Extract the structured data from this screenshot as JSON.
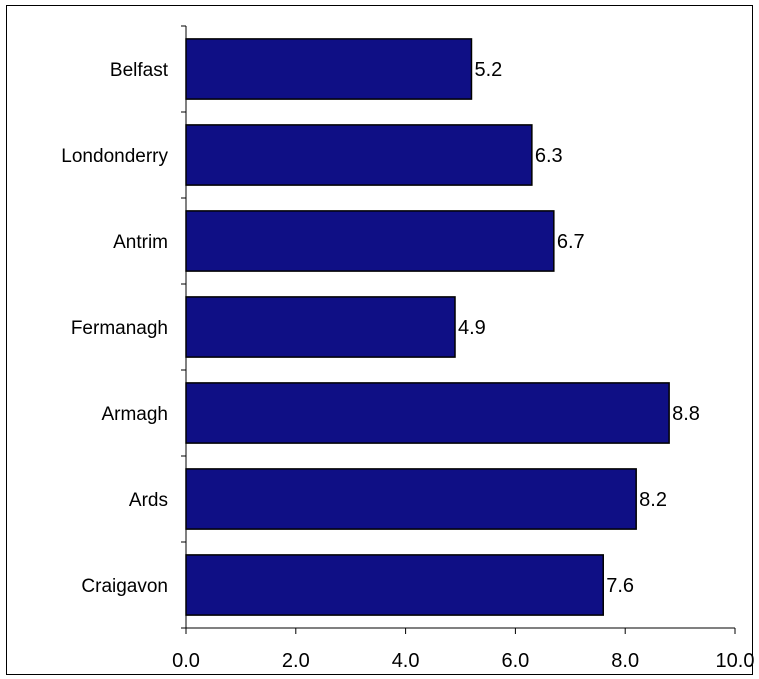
{
  "chart_data": {
    "type": "bar",
    "orientation": "horizontal",
    "categories": [
      "Belfast",
      "Londonderry",
      "Antrim",
      "Fermanagh",
      "Armagh",
      "Ards",
      "Craigavon"
    ],
    "values": [
      5.2,
      6.3,
      6.7,
      4.9,
      8.8,
      8.2,
      7.6
    ],
    "data_labels": [
      "5.2",
      "6.3",
      "6.7",
      "4.9",
      "8.8",
      "8.2",
      "7.6"
    ],
    "title": "",
    "xlabel": "",
    "ylabel": "",
    "xlim": [
      0,
      10
    ],
    "x_ticks": [
      "0.0",
      "2.0",
      "4.0",
      "6.0",
      "8.0",
      "10.0"
    ],
    "x_tick_values": [
      0,
      2,
      4,
      6,
      8,
      10
    ],
    "grid": false,
    "legend": "none",
    "colors": {
      "bar_fill": "#0F0F85",
      "bar_stroke": "#000000",
      "axis": "#000000"
    }
  }
}
